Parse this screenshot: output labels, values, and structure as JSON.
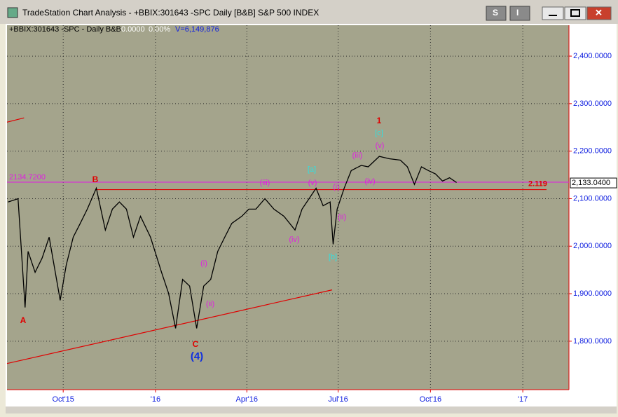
{
  "window": {
    "title": "TradeStation Chart Analysis - +BBIX:301643 -SPC Daily [B&B] S&P 500 INDEX",
    "buttons": [
      "S",
      "I"
    ]
  },
  "chart_data": {
    "type": "line",
    "info": {
      "symbol": "+BBIX:301643 -SPC - Daily  B&B",
      "change": "0.0000",
      "percent": "0.00%",
      "volume": "V=6,149,876"
    },
    "series": [
      {
        "color": "#000000",
        "x": [
          -55,
          -45,
          -38,
          -35,
          -28,
          -21,
          -14,
          -3,
          3,
          10,
          17,
          24,
          33,
          42,
          49,
          56,
          63,
          70,
          77,
          87,
          98,
          105,
          112,
          119,
          126,
          133,
          140,
          147,
          154,
          161,
          168,
          178,
          185,
          192,
          201,
          210,
          220,
          231,
          238,
          245,
          252,
          259,
          266,
          269,
          273,
          280,
          287,
          297,
          304,
          315,
          325,
          336,
          343,
          350,
          357,
          364,
          371,
          378,
          385,
          392
        ],
        "values": [
          2093,
          2100,
          1871,
          1989,
          1945,
          1975,
          2019,
          1886,
          1960,
          2019,
          2048,
          2078,
          2122,
          2034,
          2078,
          2093,
          2078,
          2019,
          2063,
          2019,
          1945,
          1901,
          1827,
          1930,
          1916,
          1827,
          1916,
          1930,
          1989,
          2019,
          2048,
          2063,
          2078,
          2078,
          2100,
          2078,
          2063,
          2034,
          2078,
          2100,
          2122,
          2085,
          2093,
          2004,
          2078,
          2122,
          2159,
          2170,
          2167,
          2189,
          2184,
          2181,
          2167,
          2130,
          2167,
          2159,
          2152,
          2137,
          2144,
          2134
        ]
      }
    ],
    "xlim": [
      -56,
      504
    ],
    "xticks": [
      {
        "value": 0,
        "label": "Oct'15"
      },
      {
        "value": 92,
        "label": "'16"
      },
      {
        "value": 183,
        "label": "Apr'16"
      },
      {
        "value": 274,
        "label": "Jul'16"
      },
      {
        "value": 366,
        "label": "Oct'16"
      },
      {
        "value": 458,
        "label": "'17"
      }
    ],
    "ylim": [
      1698,
      2465
    ],
    "yticks": [
      {
        "value": 1800,
        "label": "1,800.0000"
      },
      {
        "value": 1900,
        "label": "1,900.0000"
      },
      {
        "value": 2000,
        "label": "2,000.0000"
      },
      {
        "value": 2100,
        "label": "2,100.0000"
      },
      {
        "value": 2200,
        "label": "2,200.0000"
      },
      {
        "value": 2300,
        "label": "2,300.0000"
      },
      {
        "value": 2400,
        "label": "2,400.0000"
      }
    ],
    "grid": true,
    "horizontal_lines": [
      {
        "value": 2134.72,
        "label": "2134.7200",
        "color": "#e020e0"
      },
      {
        "value": 2119,
        "label": "2.119",
        "color": "#e00000"
      }
    ],
    "last_price": {
      "value": 2133.04,
      "label": "2,133.0400"
    },
    "trendlines": [
      {
        "color": "#e00000",
        "x": [
          -56,
          268
        ],
        "values": [
          1753,
          1908
        ]
      },
      {
        "color": "#e00000",
        "x": [
          -56,
          -39
        ],
        "values": [
          2261,
          2270
        ]
      }
    ],
    "annotations": [
      {
        "text": "1",
        "color": "#e00000"
      },
      {
        "text": "[c]",
        "color": "#30e0e0"
      },
      {
        "text": "(v)",
        "color": "#e020e0"
      },
      {
        "text": "(iii)",
        "color": "#e020e0"
      },
      {
        "text": "[a]",
        "color": "#30e0e0"
      },
      {
        "text": "(iii)",
        "color": "#e020e0"
      },
      {
        "text": "(v)",
        "color": "#e020e0"
      },
      {
        "text": "(i)",
        "color": "#e020e0"
      },
      {
        "text": "(iv)",
        "color": "#e020e0"
      },
      {
        "text": "(ii)",
        "color": "#e020e0"
      },
      {
        "text": "(iv)",
        "color": "#e020e0"
      },
      {
        "text": "[b]",
        "color": "#30e0e0"
      },
      {
        "text": "B",
        "color": "#e00000"
      },
      {
        "text": "A",
        "color": "#e00000"
      },
      {
        "text": "(i)",
        "color": "#e020e0"
      },
      {
        "text": "(ii)",
        "color": "#e020e0"
      },
      {
        "text": "C",
        "color": "#e00000"
      },
      {
        "text": "(4)",
        "color": "#1030e0"
      }
    ]
  }
}
